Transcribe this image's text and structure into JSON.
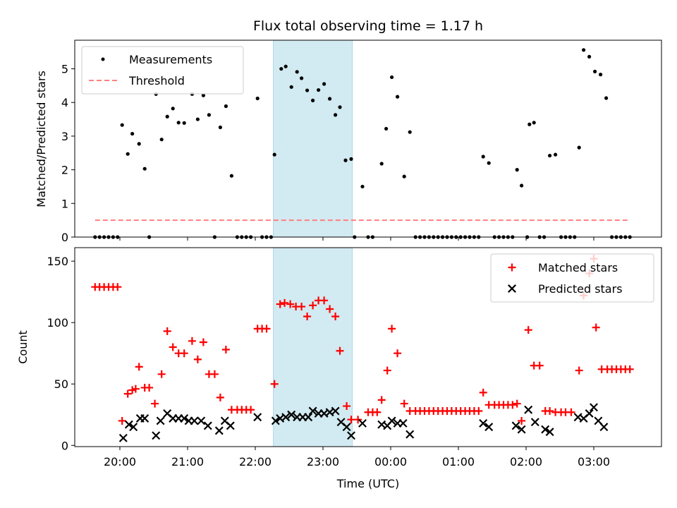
{
  "chart_data": {
    "title": "Flux total observing time = 1.17 h",
    "xlabel": "Time (UTC)",
    "x_ticks": [
      "20:00",
      "21:00",
      "22:00",
      "23:00",
      "00:00",
      "01:00",
      "02:00",
      "03:00"
    ],
    "x_range": [
      "19:20",
      "04:00"
    ],
    "shaded_interval": [
      "22:16",
      "23:26"
    ],
    "colors": {
      "measurements": "#000000",
      "threshold": "#ff7f7f",
      "matched": "#ff0000",
      "predicted": "#000000",
      "shade": "#add8e6"
    },
    "top": {
      "type": "scatter",
      "ylabel": "Matched/Predicted stars",
      "ylim": [
        0,
        5.85
      ],
      "y_ticks": [
        "0",
        "1",
        "2",
        "3",
        "4",
        "5"
      ],
      "legend": [
        "Measurements",
        "Threshold"
      ],
      "legend_position": "top-left",
      "threshold": 0.5,
      "series": [
        {
          "name": "Measurements",
          "points": [
            [
              "19:38",
              0
            ],
            [
              "19:42",
              0
            ],
            [
              "19:46",
              0
            ],
            [
              "19:50",
              0
            ],
            [
              "19:54",
              0
            ],
            [
              "19:58",
              0
            ],
            [
              "20:02",
              3.33
            ],
            [
              "20:07",
              2.47
            ],
            [
              "20:11",
              3.07
            ],
            [
              "20:17",
              2.77
            ],
            [
              "20:22",
              2.03
            ],
            [
              "20:26",
              0
            ],
            [
              "20:32",
              4.25
            ],
            [
              "20:37",
              2.9
            ],
            [
              "20:42",
              3.58
            ],
            [
              "20:47",
              3.82
            ],
            [
              "20:52",
              3.4
            ],
            [
              "20:57",
              3.39
            ],
            [
              "21:04",
              4.25
            ],
            [
              "21:09",
              3.5
            ],
            [
              "21:14",
              4.21
            ],
            [
              "21:19",
              3.63
            ],
            [
              "21:24",
              0
            ],
            [
              "21:29",
              3.26
            ],
            [
              "21:34",
              3.89
            ],
            [
              "21:39",
              1.82
            ],
            [
              "21:44",
              0
            ],
            [
              "21:48",
              0
            ],
            [
              "21:52",
              0
            ],
            [
              "21:56",
              0
            ],
            [
              "22:02",
              4.12
            ],
            [
              "22:06",
              0
            ],
            [
              "22:10",
              0
            ],
            [
              "22:14",
              0
            ],
            [
              "22:17",
              2.45
            ],
            [
              "22:23",
              5.0
            ],
            [
              "22:27",
              5.07
            ],
            [
              "22:32",
              4.46
            ],
            [
              "22:37",
              4.91
            ],
            [
              "22:41",
              4.72
            ],
            [
              "22:46",
              4.36
            ],
            [
              "22:51",
              4.06
            ],
            [
              "22:56",
              4.37
            ],
            [
              "23:01",
              4.55
            ],
            [
              "23:06",
              4.11
            ],
            [
              "23:11",
              3.63
            ],
            [
              "23:15",
              3.86
            ],
            [
              "23:20",
              2.28
            ],
            [
              "23:25",
              2.32
            ],
            [
              "23:28",
              0
            ],
            [
              "23:35",
              1.5
            ],
            [
              "23:40",
              0
            ],
            [
              "23:44",
              0
            ],
            [
              "23:52",
              2.18
            ],
            [
              "23:56",
              3.22
            ],
            [
              "00:01",
              4.75
            ],
            [
              "00:06",
              4.17
            ],
            [
              "00:12",
              1.8
            ],
            [
              "00:17",
              3.12
            ],
            [
              "00:22",
              0
            ],
            [
              "00:26",
              0
            ],
            [
              "00:30",
              0
            ],
            [
              "00:34",
              0
            ],
            [
              "00:38",
              0
            ],
            [
              "00:42",
              0
            ],
            [
              "00:46",
              0
            ],
            [
              "00:50",
              0
            ],
            [
              "00:54",
              0
            ],
            [
              "00:58",
              0
            ],
            [
              "01:02",
              0
            ],
            [
              "01:06",
              0
            ],
            [
              "01:10",
              0
            ],
            [
              "01:14",
              0
            ],
            [
              "01:18",
              0
            ],
            [
              "01:22",
              2.39
            ],
            [
              "01:27",
              2.2
            ],
            [
              "01:32",
              0
            ],
            [
              "01:36",
              0
            ],
            [
              "01:40",
              0
            ],
            [
              "01:44",
              0
            ],
            [
              "01:48",
              0
            ],
            [
              "01:52",
              2.0
            ],
            [
              "01:56",
              1.53
            ],
            [
              "02:01",
              0
            ],
            [
              "02:03",
              3.35
            ],
            [
              "02:07",
              3.4
            ],
            [
              "02:12",
              0
            ],
            [
              "02:16",
              0
            ],
            [
              "02:21",
              2.42
            ],
            [
              "02:26",
              2.45
            ],
            [
              "02:31",
              0
            ],
            [
              "02:35",
              0
            ],
            [
              "02:39",
              0
            ],
            [
              "02:43",
              0
            ],
            [
              "02:47",
              2.66
            ],
            [
              "02:51",
              5.56
            ],
            [
              "02:56",
              5.36
            ],
            [
              "03:01",
              4.92
            ],
            [
              "03:06",
              4.83
            ],
            [
              "03:11",
              4.13
            ],
            [
              "03:16",
              0
            ],
            [
              "03:20",
              0
            ],
            [
              "03:24",
              0
            ],
            [
              "03:28",
              0
            ],
            [
              "03:32",
              0
            ]
          ]
        }
      ]
    },
    "bottom": {
      "type": "scatter",
      "ylabel": "Count",
      "ylim": [
        -1,
        161
      ],
      "y_ticks": [
        "0",
        "50",
        "100",
        "150"
      ],
      "legend": [
        "Matched stars",
        "Predicted stars"
      ],
      "legend_position": "top-right",
      "series": [
        {
          "name": "Matched stars",
          "points": [
            [
              "19:38",
              129
            ],
            [
              "19:42",
              129
            ],
            [
              "19:46",
              129
            ],
            [
              "19:50",
              129
            ],
            [
              "19:54",
              129
            ],
            [
              "19:58",
              129
            ],
            [
              "20:02",
              20
            ],
            [
              "20:07",
              42
            ],
            [
              "20:11",
              45
            ],
            [
              "20:14",
              46
            ],
            [
              "20:17",
              64
            ],
            [
              "20:22",
              47
            ],
            [
              "20:26",
              47
            ],
            [
              "20:31",
              34
            ],
            [
              "20:37",
              58
            ],
            [
              "20:42",
              93
            ],
            [
              "20:47",
              80
            ],
            [
              "20:52",
              75
            ],
            [
              "20:57",
              75
            ],
            [
              "21:04",
              85
            ],
            [
              "21:09",
              70
            ],
            [
              "21:14",
              84
            ],
            [
              "21:19",
              58
            ],
            [
              "21:24",
              58
            ],
            [
              "21:29",
              39
            ],
            [
              "21:34",
              78
            ],
            [
              "21:39",
              29
            ],
            [
              "21:44",
              29
            ],
            [
              "21:48",
              29
            ],
            [
              "21:52",
              29
            ],
            [
              "21:56",
              29
            ],
            [
              "22:02",
              95
            ],
            [
              "22:06",
              95
            ],
            [
              "22:10",
              95
            ],
            [
              "22:17",
              50
            ],
            [
              "22:22",
              115
            ],
            [
              "22:26",
              116
            ],
            [
              "22:31",
              115
            ],
            [
              "22:36",
              113
            ],
            [
              "22:41",
              113
            ],
            [
              "22:46",
              105
            ],
            [
              "22:51",
              114
            ],
            [
              "22:56",
              118
            ],
            [
              "23:01",
              118
            ],
            [
              "23:06",
              111
            ],
            [
              "23:11",
              105
            ],
            [
              "23:15",
              77
            ],
            [
              "23:21",
              32
            ],
            [
              "23:25",
              21
            ],
            [
              "23:31",
              21
            ],
            [
              "23:40",
              27
            ],
            [
              "23:44",
              27
            ],
            [
              "23:48",
              27
            ],
            [
              "23:52",
              37
            ],
            [
              "23:57",
              61
            ],
            [
              "00:01",
              95
            ],
            [
              "00:06",
              75
            ],
            [
              "00:12",
              34
            ],
            [
              "00:17",
              28
            ],
            [
              "00:22",
              28
            ],
            [
              "00:26",
              28
            ],
            [
              "00:30",
              28
            ],
            [
              "00:34",
              28
            ],
            [
              "00:38",
              28
            ],
            [
              "00:42",
              28
            ],
            [
              "00:46",
              28
            ],
            [
              "00:50",
              28
            ],
            [
              "00:54",
              28
            ],
            [
              "00:58",
              28
            ],
            [
              "01:02",
              28
            ],
            [
              "01:06",
              28
            ],
            [
              "01:10",
              28
            ],
            [
              "01:14",
              28
            ],
            [
              "01:18",
              28
            ],
            [
              "01:22",
              43
            ],
            [
              "01:27",
              33
            ],
            [
              "01:32",
              33
            ],
            [
              "01:36",
              33
            ],
            [
              "01:40",
              33
            ],
            [
              "01:44",
              33
            ],
            [
              "01:48",
              33
            ],
            [
              "01:52",
              34
            ],
            [
              "01:56",
              20
            ],
            [
              "02:02",
              94
            ],
            [
              "02:07",
              65
            ],
            [
              "02:12",
              65
            ],
            [
              "02:17",
              28
            ],
            [
              "02:21",
              28
            ],
            [
              "02:26",
              27
            ],
            [
              "02:31",
              27
            ],
            [
              "02:35",
              27
            ],
            [
              "02:40",
              27
            ],
            [
              "02:47",
              61
            ],
            [
              "02:51",
              122
            ],
            [
              "02:56",
              140
            ],
            [
              "03:00",
              152
            ],
            [
              "03:02",
              96
            ],
            [
              "03:07",
              62
            ],
            [
              "03:12",
              62
            ],
            [
              "03:16",
              62
            ],
            [
              "03:20",
              62
            ],
            [
              "03:24",
              62
            ],
            [
              "03:28",
              62
            ],
            [
              "03:32",
              62
            ]
          ]
        },
        {
          "name": "Predicted stars",
          "points": [
            [
              "20:03",
              6
            ],
            [
              "20:08",
              17
            ],
            [
              "20:12",
              15
            ],
            [
              "20:18",
              22
            ],
            [
              "20:22",
              22
            ],
            [
              "20:32",
              8
            ],
            [
              "20:36",
              20
            ],
            [
              "20:42",
              26
            ],
            [
              "20:47",
              22
            ],
            [
              "20:52",
              22
            ],
            [
              "20:57",
              22
            ],
            [
              "21:01",
              20
            ],
            [
              "21:06",
              20
            ],
            [
              "21:12",
              20
            ],
            [
              "21:18",
              16
            ],
            [
              "21:28",
              12
            ],
            [
              "21:33",
              20
            ],
            [
              "21:38",
              16
            ],
            [
              "22:02",
              23
            ],
            [
              "22:18",
              20
            ],
            [
              "22:22",
              22
            ],
            [
              "22:27",
              23
            ],
            [
              "22:32",
              25
            ],
            [
              "22:37",
              23
            ],
            [
              "22:42",
              23
            ],
            [
              "22:47",
              23
            ],
            [
              "22:51",
              28
            ],
            [
              "22:56",
              26
            ],
            [
              "23:01",
              26
            ],
            [
              "23:06",
              27
            ],
            [
              "23:11",
              28
            ],
            [
              "23:16",
              19
            ],
            [
              "23:21",
              15
            ],
            [
              "23:25",
              8
            ],
            [
              "23:35",
              18
            ],
            [
              "23:52",
              17
            ],
            [
              "23:57",
              16
            ],
            [
              "00:01",
              20
            ],
            [
              "00:06",
              18
            ],
            [
              "00:11",
              18
            ],
            [
              "00:17",
              9
            ],
            [
              "01:22",
              18
            ],
            [
              "01:27",
              15
            ],
            [
              "01:51",
              16
            ],
            [
              "01:56",
              13
            ],
            [
              "02:02",
              29
            ],
            [
              "02:08",
              19
            ],
            [
              "02:17",
              13
            ],
            [
              "02:21",
              11
            ],
            [
              "02:46",
              23
            ],
            [
              "02:51",
              22
            ],
            [
              "02:56",
              26
            ],
            [
              "03:00",
              31
            ],
            [
              "03:04",
              20
            ],
            [
              "03:09",
              15
            ]
          ]
        }
      ]
    }
  }
}
